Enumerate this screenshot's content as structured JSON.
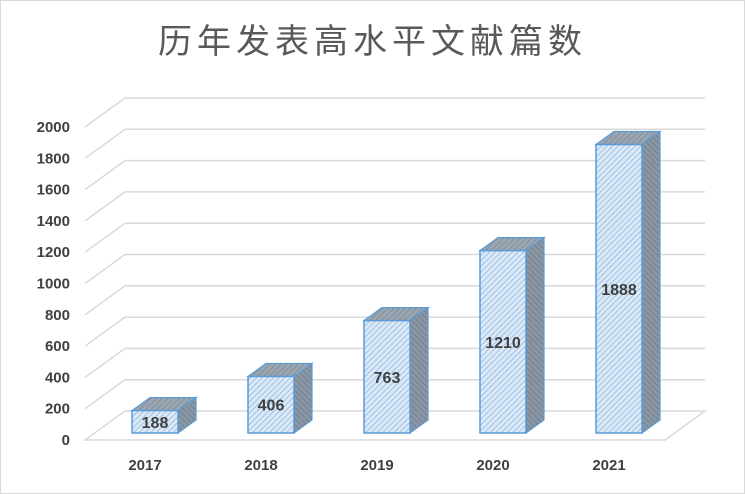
{
  "chart_data": {
    "type": "bar",
    "title": "历年发表高水平文献篇数",
    "categories": [
      "2017",
      "2018",
      "2019",
      "2020",
      "2021"
    ],
    "values": [
      188,
      406,
      763,
      1210,
      1888
    ],
    "ylim": [
      0,
      2000
    ],
    "yticks": [
      0,
      200,
      400,
      600,
      800,
      1000,
      1200,
      1400,
      1600,
      1800,
      2000
    ],
    "grid": true,
    "style": "3d-column",
    "bar_fill": "#dce9f7",
    "bar_stroke": "#5b9bd5",
    "hatch_color": "#8fb8e3",
    "side_fill": "#7f8c99",
    "grid_color": "#d9d9d9",
    "text_color": "#404040"
  }
}
